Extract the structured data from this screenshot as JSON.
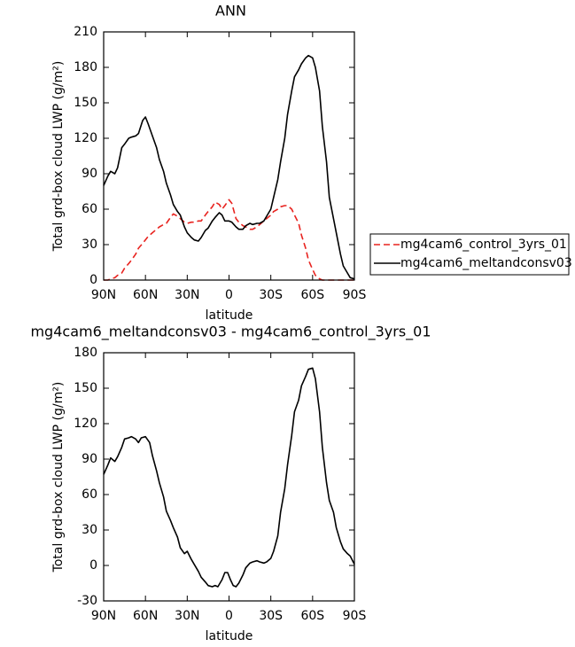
{
  "chart_data": [
    {
      "type": "line",
      "title": "ANN",
      "xlabel": "latitude",
      "ylabel": "Total grd-box cloud LWP (g/m²)",
      "x": [
        90,
        87,
        85,
        82,
        80,
        77,
        75,
        72,
        70,
        67,
        65,
        62,
        60,
        58,
        55,
        52,
        50,
        47,
        45,
        42,
        40,
        37,
        35,
        32,
        30,
        27,
        25,
        22,
        20,
        17,
        15,
        12,
        10,
        7,
        5,
        3,
        0,
        -2,
        -5,
        -7,
        -10,
        -12,
        -15,
        -17,
        -20,
        -22,
        -25,
        -27,
        -30,
        -32,
        -35,
        -37,
        -40,
        -42,
        -45,
        -47,
        -50,
        -52,
        -55,
        -57,
        -60,
        -62,
        -65,
        -67,
        -70,
        -72,
        -75,
        -77,
        -80,
        -82,
        -85,
        -87,
        -90
      ],
      "series": [
        {
          "name": "mg4cam6_control_3yrs_01",
          "color": "#e8231f",
          "dash": "dashed",
          "values": [
            0,
            0,
            1,
            2,
            4,
            6,
            10,
            14,
            17,
            22,
            27,
            31,
            34,
            37,
            40,
            43,
            45,
            47,
            48,
            53,
            56,
            54,
            52,
            49,
            48,
            49,
            49,
            50,
            50,
            55,
            58,
            62,
            66,
            64,
            60,
            63,
            68,
            65,
            52,
            49,
            46,
            45,
            43,
            43,
            45,
            47,
            50,
            52,
            55,
            58,
            60,
            62,
            63,
            63,
            60,
            55,
            48,
            38,
            27,
            17,
            9,
            4,
            1,
            0,
            0,
            0,
            0,
            0,
            0,
            0,
            0,
            0,
            0
          ]
        },
        {
          "name": "mg4cam6_meltandconsv03",
          "color": "#000000",
          "dash": "solid",
          "values": [
            80,
            88,
            92,
            90,
            95,
            112,
            115,
            120,
            121,
            122,
            124,
            135,
            138,
            132,
            122,
            112,
            102,
            92,
            82,
            72,
            64,
            58,
            55,
            45,
            40,
            36,
            34,
            33,
            36,
            42,
            44,
            50,
            53,
            57,
            55,
            50,
            50,
            49,
            45,
            43,
            43,
            46,
            48,
            47,
            48,
            48,
            50,
            54,
            60,
            70,
            85,
            100,
            120,
            140,
            160,
            172,
            178,
            183,
            188,
            190,
            188,
            180,
            160,
            130,
            100,
            70,
            52,
            40,
            22,
            12,
            6,
            2,
            1
          ]
        }
      ],
      "xlim": [
        90,
        -90
      ],
      "xticks": [
        {
          "value": 90,
          "label": "90N"
        },
        {
          "value": 60,
          "label": "60N"
        },
        {
          "value": 30,
          "label": "30N"
        },
        0,
        {
          "value": -30,
          "label": "30S"
        },
        {
          "value": -60,
          "label": "60S"
        },
        {
          "value": -90,
          "label": "90S"
        }
      ],
      "ylim": [
        0,
        210
      ],
      "yticks": [
        0,
        30,
        60,
        90,
        120,
        150,
        180,
        210
      ],
      "legend": "outside-right"
    },
    {
      "type": "line",
      "title": "mg4cam6_meltandconsv03 - mg4cam6_control_3yrs_01",
      "xlabel": "latitude",
      "ylabel": "Total grd-box cloud LWP (g/m²)",
      "x": [
        90,
        87,
        85,
        82,
        80,
        77,
        75,
        72,
        70,
        67,
        65,
        63,
        60,
        57,
        55,
        52,
        50,
        47,
        45,
        42,
        40,
        37,
        35,
        32,
        30,
        27,
        25,
        22,
        20,
        17,
        15,
        12,
        10,
        8,
        5,
        3,
        1,
        -1,
        -3,
        -5,
        -7,
        -10,
        -12,
        -15,
        -17,
        -20,
        -22,
        -25,
        -27,
        -30,
        -32,
        -35,
        -37,
        -40,
        -42,
        -45,
        -47,
        -50,
        -52,
        -55,
        -57,
        -60,
        -62,
        -65,
        -67,
        -70,
        -72,
        -75,
        -77,
        -80,
        -82,
        -85,
        -87,
        -90
      ],
      "series": [
        {
          "color": "#000000",
          "dash": "solid",
          "values": [
            77,
            85,
            91,
            88,
            92,
            100,
            107,
            108,
            109,
            107,
            104,
            108,
            109,
            104,
            93,
            80,
            70,
            58,
            46,
            38,
            32,
            24,
            15,
            10,
            12,
            5,
            1,
            -5,
            -10,
            -14,
            -17,
            -18,
            -17,
            -18,
            -12,
            -6,
            -6,
            -12,
            -17,
            -18,
            -15,
            -8,
            -2,
            2,
            3,
            4,
            3,
            2,
            3,
            6,
            12,
            25,
            45,
            65,
            85,
            110,
            130,
            140,
            152,
            160,
            166,
            167,
            158,
            130,
            100,
            70,
            55,
            45,
            32,
            20,
            14,
            10,
            8,
            1
          ]
        }
      ],
      "xlim": [
        90,
        -90
      ],
      "xticks": [
        {
          "value": 90,
          "label": "90N"
        },
        {
          "value": 60,
          "label": "60N"
        },
        {
          "value": 30,
          "label": "30N"
        },
        0,
        {
          "value": -30,
          "label": "30S"
        },
        {
          "value": -60,
          "label": "60S"
        },
        {
          "value": -90,
          "label": "90S"
        }
      ],
      "ylim": [
        -30,
        180
      ],
      "yticks": [
        -30,
        0,
        30,
        60,
        90,
        120,
        150,
        180
      ]
    }
  ]
}
